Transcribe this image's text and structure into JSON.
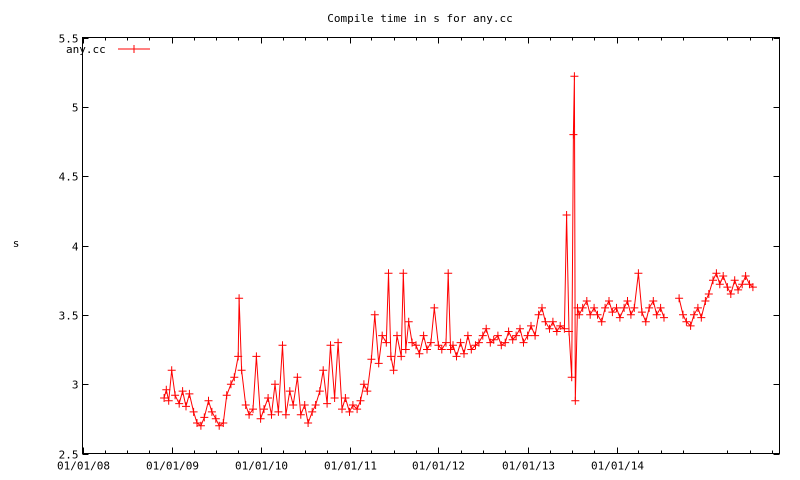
{
  "chart_data": {
    "type": "line",
    "title": "Compile time in s for any.cc",
    "xlabel": "",
    "ylabel": "s",
    "xlim": [
      "2008-01-01",
      "2015-11-01"
    ],
    "ylim": [
      2.5,
      5.5
    ],
    "x_ticks": [
      "01/01/08",
      "01/01/09",
      "01/01/10",
      "01/01/11",
      "01/01/12",
      "01/01/13",
      "01/01/14"
    ],
    "y_ticks": [
      "2.5",
      "3",
      "3.5",
      "4",
      "4.5",
      "5",
      "5.5"
    ],
    "grid": false,
    "legend_position": "top-left",
    "marker": "plus",
    "series": [
      {
        "name": "any.cc",
        "color": "#ff0000",
        "points": [
          [
            "2008-12-01",
            2.9
          ],
          [
            "2008-12-10",
            2.96
          ],
          [
            "2008-12-20",
            2.88
          ],
          [
            "2009-01-01",
            3.1
          ],
          [
            "2009-01-15",
            2.92
          ],
          [
            "2009-02-01",
            2.86
          ],
          [
            "2009-02-15",
            2.95
          ],
          [
            "2009-03-01",
            2.84
          ],
          [
            "2009-03-15",
            2.93
          ],
          [
            "2009-04-01",
            2.8
          ],
          [
            "2009-04-15",
            2.72
          ],
          [
            "2009-05-01",
            2.7
          ],
          [
            "2009-05-15",
            2.76
          ],
          [
            "2009-06-01",
            2.88
          ],
          [
            "2009-06-15",
            2.8
          ],
          [
            "2009-07-01",
            2.75
          ],
          [
            "2009-07-15",
            2.7
          ],
          [
            "2009-08-01",
            2.72
          ],
          [
            "2009-08-15",
            2.92
          ],
          [
            "2009-09-01",
            3.0
          ],
          [
            "2009-09-15",
            3.05
          ],
          [
            "2009-10-01",
            3.2
          ],
          [
            "2009-10-05",
            3.62
          ],
          [
            "2009-10-15",
            3.1
          ],
          [
            "2009-11-01",
            2.85
          ],
          [
            "2009-11-15",
            2.78
          ],
          [
            "2009-12-01",
            2.82
          ],
          [
            "2009-12-15",
            3.2
          ],
          [
            "2010-01-01",
            2.75
          ],
          [
            "2010-01-15",
            2.82
          ],
          [
            "2010-02-01",
            2.9
          ],
          [
            "2010-02-15",
            2.78
          ],
          [
            "2010-03-01",
            3.0
          ],
          [
            "2010-03-15",
            2.8
          ],
          [
            "2010-04-01",
            3.28
          ],
          [
            "2010-04-15",
            2.78
          ],
          [
            "2010-05-01",
            2.95
          ],
          [
            "2010-05-15",
            2.85
          ],
          [
            "2010-06-01",
            3.05
          ],
          [
            "2010-06-15",
            2.78
          ],
          [
            "2010-07-01",
            2.85
          ],
          [
            "2010-07-15",
            2.72
          ],
          [
            "2010-08-01",
            2.8
          ],
          [
            "2010-08-15",
            2.85
          ],
          [
            "2010-09-01",
            2.95
          ],
          [
            "2010-09-15",
            3.1
          ],
          [
            "2010-10-01",
            2.86
          ],
          [
            "2010-10-15",
            3.28
          ],
          [
            "2010-11-01",
            2.9
          ],
          [
            "2010-11-15",
            3.3
          ],
          [
            "2010-12-01",
            2.82
          ],
          [
            "2010-12-15",
            2.9
          ],
          [
            "2011-01-01",
            2.8
          ],
          [
            "2011-01-15",
            2.85
          ],
          [
            "2011-02-01",
            2.82
          ],
          [
            "2011-02-15",
            2.88
          ],
          [
            "2011-03-01",
            3.0
          ],
          [
            "2011-03-15",
            2.95
          ],
          [
            "2011-04-01",
            3.18
          ],
          [
            "2011-04-15",
            3.5
          ],
          [
            "2011-05-01",
            3.15
          ],
          [
            "2011-05-15",
            3.35
          ],
          [
            "2011-06-01",
            3.3
          ],
          [
            "2011-06-10",
            3.8
          ],
          [
            "2011-06-20",
            3.2
          ],
          [
            "2011-07-01",
            3.1
          ],
          [
            "2011-07-15",
            3.35
          ],
          [
            "2011-08-01",
            3.2
          ],
          [
            "2011-08-10",
            3.8
          ],
          [
            "2011-08-20",
            3.25
          ],
          [
            "2011-09-01",
            3.45
          ],
          [
            "2011-09-15",
            3.3
          ],
          [
            "2011-10-01",
            3.28
          ],
          [
            "2011-10-15",
            3.22
          ],
          [
            "2011-11-01",
            3.35
          ],
          [
            "2011-11-15",
            3.25
          ],
          [
            "2011-12-01",
            3.3
          ],
          [
            "2011-12-15",
            3.55
          ],
          [
            "2012-01-01",
            3.28
          ],
          [
            "2012-01-15",
            3.25
          ],
          [
            "2012-02-01",
            3.3
          ],
          [
            "2012-02-10",
            3.8
          ],
          [
            "2012-02-20",
            3.25
          ],
          [
            "2012-03-01",
            3.28
          ],
          [
            "2012-03-15",
            3.2
          ],
          [
            "2012-04-01",
            3.3
          ],
          [
            "2012-04-15",
            3.22
          ],
          [
            "2012-05-01",
            3.35
          ],
          [
            "2012-05-15",
            3.25
          ],
          [
            "2012-06-01",
            3.28
          ],
          [
            "2012-06-15",
            3.3
          ],
          [
            "2012-07-01",
            3.35
          ],
          [
            "2012-07-15",
            3.4
          ],
          [
            "2012-08-01",
            3.3
          ],
          [
            "2012-08-15",
            3.32
          ],
          [
            "2012-09-01",
            3.35
          ],
          [
            "2012-09-15",
            3.28
          ],
          [
            "2012-10-01",
            3.3
          ],
          [
            "2012-10-15",
            3.38
          ],
          [
            "2012-11-01",
            3.32
          ],
          [
            "2012-11-15",
            3.35
          ],
          [
            "2012-12-01",
            3.4
          ],
          [
            "2012-12-15",
            3.3
          ],
          [
            "2013-01-01",
            3.35
          ],
          [
            "2013-01-15",
            3.42
          ],
          [
            "2013-02-01",
            3.35
          ],
          [
            "2013-02-15",
            3.5
          ],
          [
            "2013-03-01",
            3.55
          ],
          [
            "2013-03-15",
            3.45
          ],
          [
            "2013-04-01",
            3.4
          ],
          [
            "2013-04-15",
            3.45
          ],
          [
            "2013-05-01",
            3.38
          ],
          [
            "2013-05-15",
            3.42
          ],
          [
            "2013-06-01",
            3.4
          ],
          [
            "2013-06-10",
            4.22
          ],
          [
            "2013-06-20",
            3.38
          ],
          [
            "2013-07-01",
            3.05
          ],
          [
            "2013-07-08",
            4.8
          ],
          [
            "2013-07-12",
            5.22
          ],
          [
            "2013-07-16",
            2.88
          ],
          [
            "2013-07-25",
            3.55
          ],
          [
            "2013-08-01",
            3.5
          ],
          [
            "2013-08-15",
            3.55
          ],
          [
            "2013-09-01",
            3.6
          ],
          [
            "2013-09-15",
            3.5
          ],
          [
            "2013-10-01",
            3.55
          ],
          [
            "2013-10-15",
            3.5
          ],
          [
            "2013-11-01",
            3.45
          ],
          [
            "2013-11-15",
            3.55
          ],
          [
            "2013-12-01",
            3.6
          ],
          [
            "2013-12-15",
            3.52
          ],
          [
            "2014-01-01",
            3.55
          ],
          [
            "2014-01-15",
            3.48
          ],
          [
            "2014-02-01",
            3.55
          ],
          [
            "2014-02-15",
            3.6
          ],
          [
            "2014-03-01",
            3.5
          ],
          [
            "2014-03-15",
            3.55
          ],
          [
            "2014-04-01",
            3.8
          ],
          [
            "2014-04-15",
            3.52
          ],
          [
            "2014-05-01",
            3.45
          ],
          [
            "2014-05-15",
            3.55
          ],
          [
            "2014-06-01",
            3.6
          ],
          [
            "2014-06-15",
            3.5
          ],
          [
            "2014-07-01",
            3.55
          ],
          [
            "2014-07-15",
            3.48
          ],
          null,
          [
            "2014-09-15",
            3.62
          ],
          [
            "2014-10-01",
            3.5
          ],
          [
            "2014-10-15",
            3.45
          ],
          [
            "2014-11-01",
            3.42
          ],
          [
            "2014-11-15",
            3.5
          ],
          [
            "2014-12-01",
            3.55
          ],
          [
            "2014-12-15",
            3.48
          ],
          [
            "2015-01-01",
            3.6
          ],
          [
            "2015-01-15",
            3.65
          ],
          [
            "2015-02-01",
            3.75
          ],
          [
            "2015-02-15",
            3.8
          ],
          [
            "2015-03-01",
            3.72
          ],
          [
            "2015-03-15",
            3.78
          ],
          [
            "2015-04-01",
            3.7
          ],
          [
            "2015-04-15",
            3.65
          ],
          [
            "2015-05-01",
            3.75
          ],
          [
            "2015-05-15",
            3.68
          ],
          [
            "2015-06-01",
            3.72
          ],
          [
            "2015-06-15",
            3.78
          ],
          [
            "2015-07-01",
            3.72
          ],
          [
            "2015-07-15",
            3.7
          ]
        ]
      }
    ]
  }
}
